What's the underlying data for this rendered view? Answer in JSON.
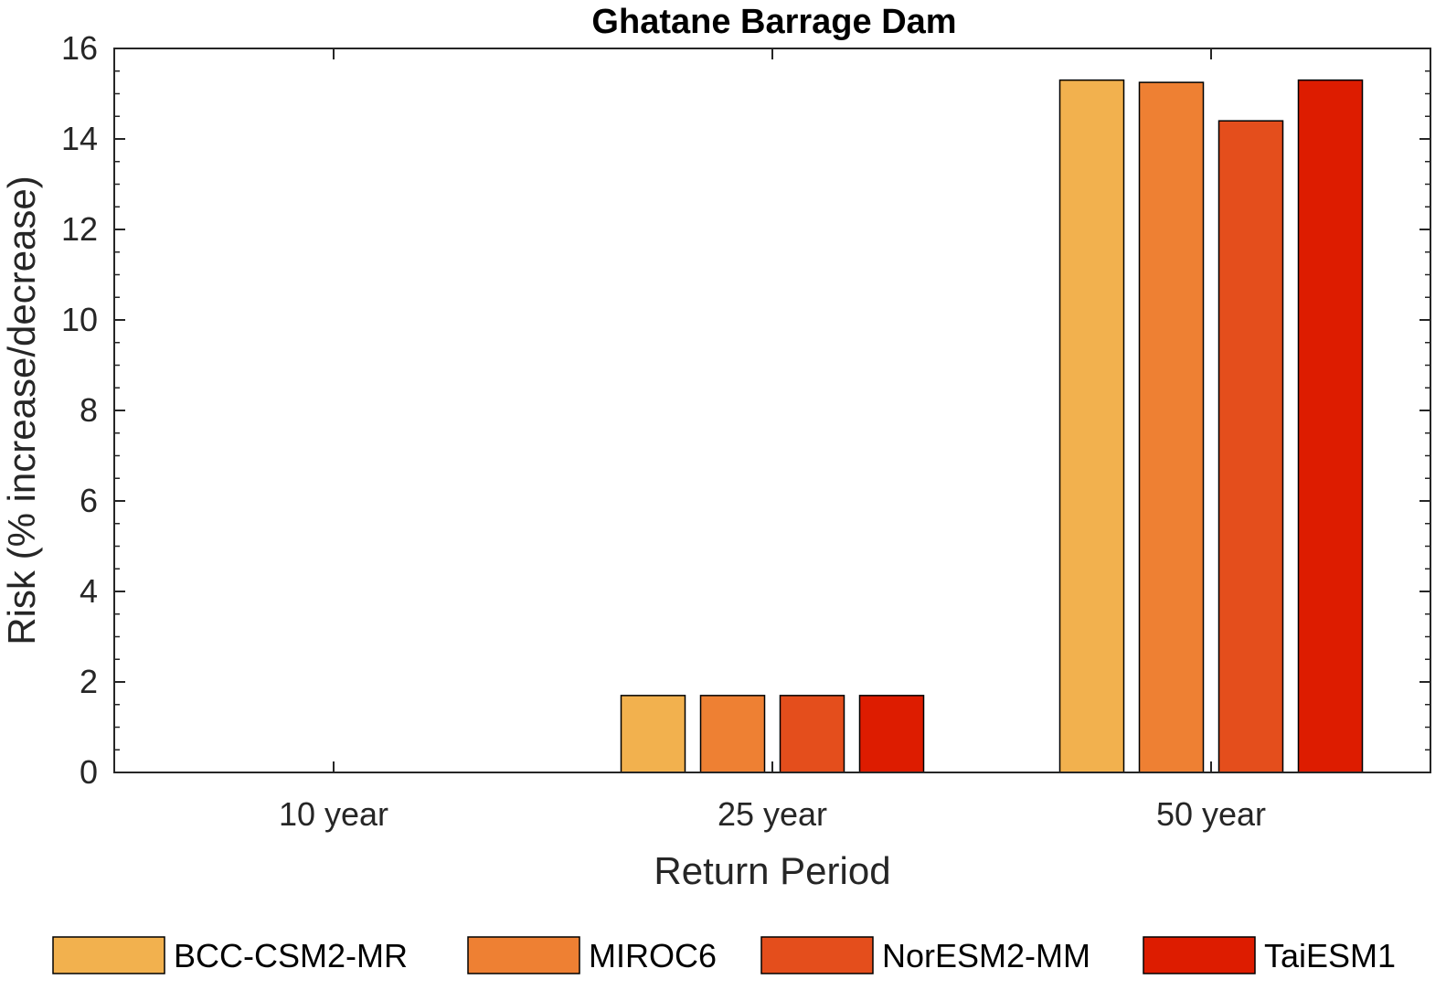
{
  "chart_data": {
    "type": "bar",
    "title": "Ghatane Barrage Dam",
    "xlabel": "Return Period",
    "ylabel": "Risk (% increase/decrease)",
    "categories": [
      "10 year",
      "25 year",
      "50 year"
    ],
    "ylim": [
      0,
      16
    ],
    "yticks": [
      0,
      2,
      4,
      6,
      8,
      10,
      12,
      14,
      16
    ],
    "grid": false,
    "legend": "bottom",
    "series": [
      {
        "name": "BCC-CSM2-MR",
        "color": "#F2B14E",
        "values": [
          0,
          1.7,
          15.3
        ]
      },
      {
        "name": "MIROC6",
        "color": "#EE8033",
        "values": [
          0,
          1.7,
          15.25
        ]
      },
      {
        "name": "NorESM2-MM",
        "color": "#E44E1C",
        "values": [
          0,
          1.7,
          14.4
        ]
      },
      {
        "name": "TaiESM1",
        "color": "#DD1C00",
        "values": [
          0,
          1.7,
          15.3
        ]
      }
    ]
  }
}
